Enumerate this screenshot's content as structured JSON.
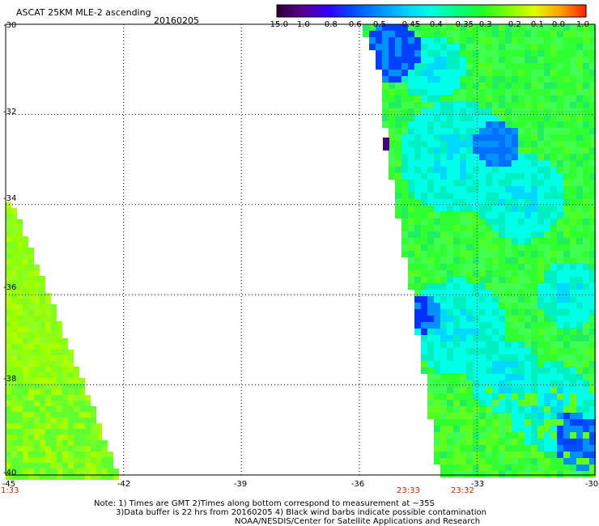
{
  "header": {
    "title": "ASCAT 25KM MLE-2 ascending",
    "date": "20160205"
  },
  "colorbar": {
    "labels": [
      "-15.0",
      "-1.0",
      "-0.8",
      "-0.6",
      "-0.5",
      "-0.45",
      "-0.4",
      "-0.35",
      "-0.3",
      "-0.2",
      "-0.1",
      "0.0",
      "1.0"
    ],
    "colors": [
      "#2a0033",
      "#5a0090",
      "#3000ff",
      "#0050ff",
      "#0090ff",
      "#00d0ff",
      "#00ffe0",
      "#00ff80",
      "#20ff20",
      "#80ff00",
      "#e0ff00",
      "#ffa000",
      "#ff2000"
    ]
  },
  "axes": {
    "y_labels": [
      "-30",
      "-32",
      "-34",
      "-36",
      "-38",
      "-40"
    ],
    "x_labels": [
      "-45",
      "-42",
      "-39",
      "-36",
      "-33",
      "-30"
    ]
  },
  "times": [
    "1:33",
    "23:33",
    "23:32"
  ],
  "notes": {
    "line1": "Note: 1) Times are GMT 2)Times along bottom correspond to measurement at ~35S",
    "line2": "3)Data buffer is 22 hrs from 20160205 4) Black wind barbs indicate possible contamination",
    "line3": "NOAA/NESDIS/Center for Satellite Applications and Research"
  },
  "map_data": {
    "lon_range": [
      -45,
      -30
    ],
    "lat_range": [
      -40,
      -30
    ]
  }
}
